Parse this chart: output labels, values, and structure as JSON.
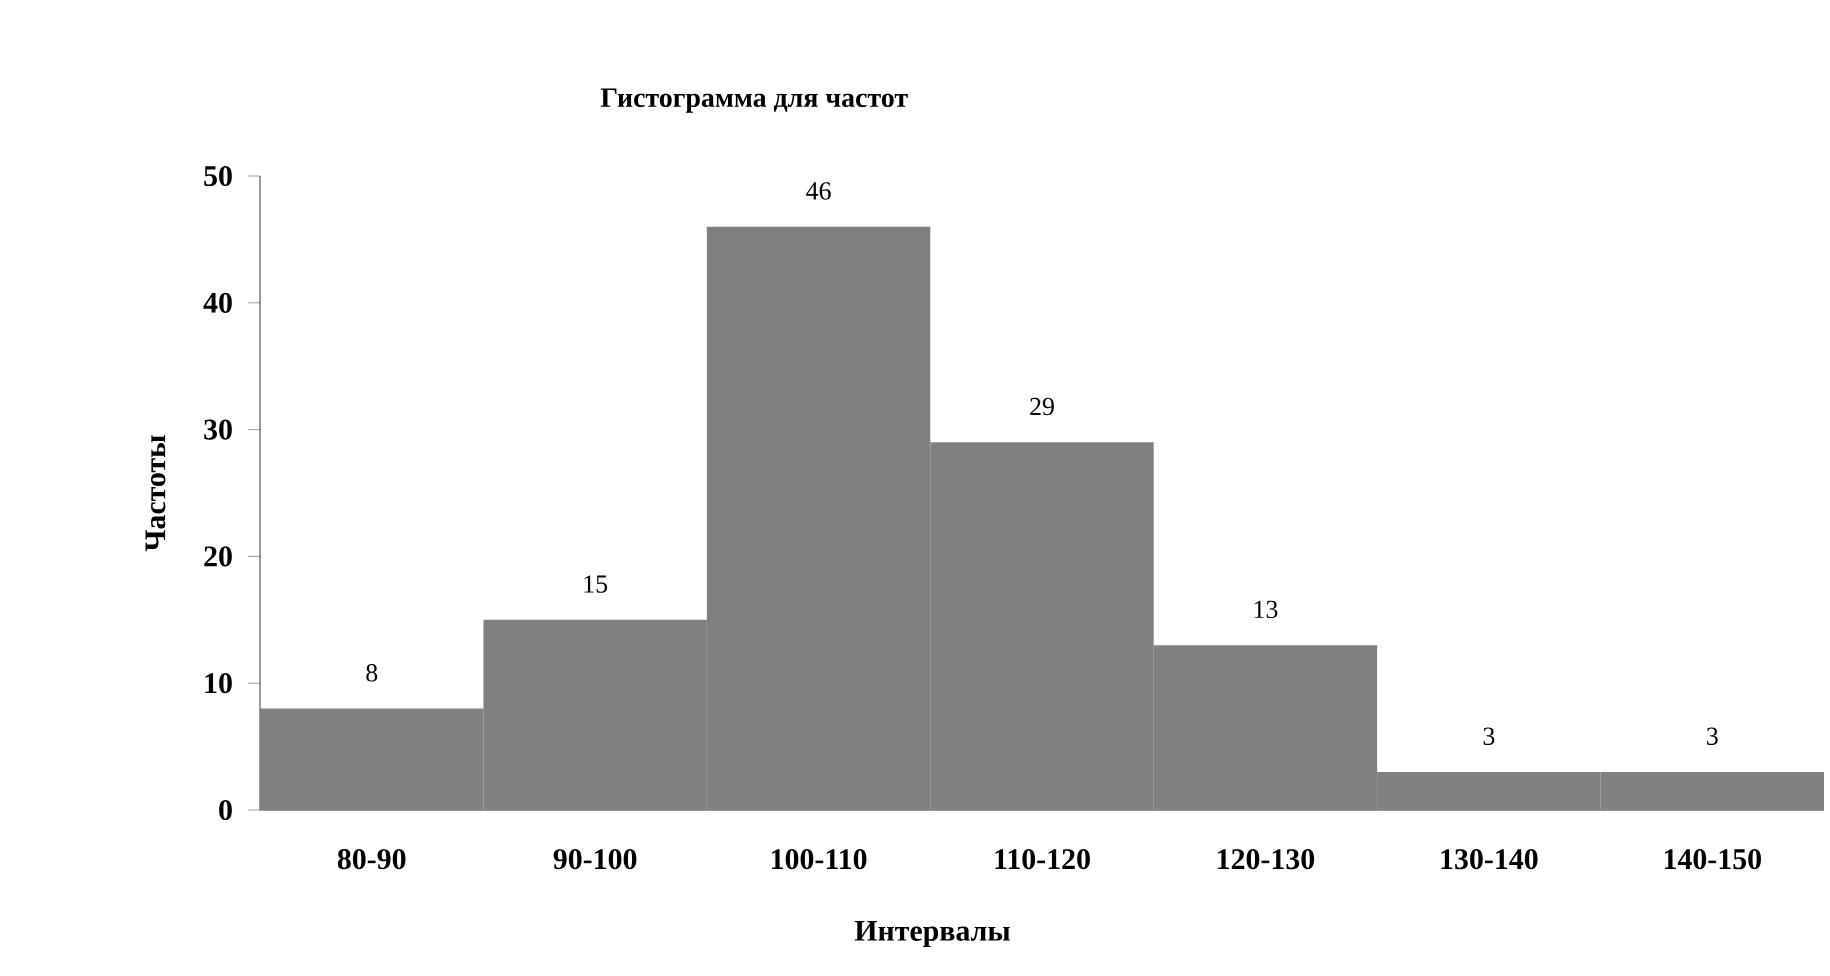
{
  "chart_data": {
    "type": "bar",
    "title": "Гистограмма  для частот",
    "xlabel": "Интервалы",
    "ylabel": "Частоты",
    "categories": [
      "80-90",
      "90-100",
      "100-110",
      "110-120",
      "120-130",
      "130-140",
      "140-150"
    ],
    "values": [
      8,
      15,
      46,
      29,
      13,
      3,
      3
    ],
    "color": "#808080",
    "ylim": [
      0,
      50
    ],
    "yticks": [
      0,
      10,
      20,
      30,
      40,
      50
    ],
    "data_labels": true,
    "grid": false
  }
}
